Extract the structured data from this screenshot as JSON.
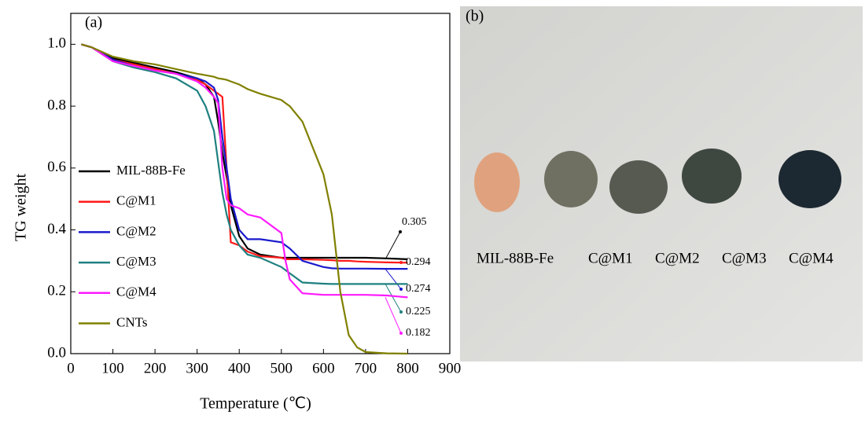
{
  "chart_data": {
    "type": "line",
    "panel_label": "(a)",
    "xlabel": "Temperature (℃)",
    "ylabel": "TG weight",
    "xlim": [
      0,
      900
    ],
    "xticks": [
      0,
      100,
      200,
      300,
      400,
      500,
      600,
      700,
      800,
      900
    ],
    "ylim": [
      0,
      1.1
    ],
    "yticks": [
      {
        "value": 0,
        "label": "0.0"
      },
      0.2,
      0.4,
      0.6,
      0.8,
      {
        "value": 1,
        "label": "1.0"
      }
    ],
    "x": [
      25,
      50,
      100,
      150,
      200,
      250,
      300,
      320,
      340,
      350,
      360,
      370,
      380,
      400,
      420,
      450,
      500,
      510,
      520,
      550,
      600,
      620,
      640,
      660,
      680,
      700,
      750,
      800
    ],
    "series": [
      {
        "name": "MIL-88B-Fe",
        "color": "#000000",
        "end_label": "0.305",
        "values": [
          1.0,
          0.99,
          0.955,
          0.94,
          0.925,
          0.91,
          0.89,
          0.87,
          0.83,
          0.75,
          0.65,
          0.57,
          0.48,
          0.38,
          0.34,
          0.32,
          0.31,
          0.31,
          0.31,
          0.31,
          0.31,
          0.31,
          0.31,
          0.31,
          0.31,
          0.31,
          0.308,
          0.305
        ]
      },
      {
        "name": "C@M1",
        "color": "#ff1a1a",
        "end_label": "0.294",
        "values": [
          1.0,
          0.99,
          0.95,
          0.935,
          0.92,
          0.905,
          0.885,
          0.87,
          0.85,
          0.84,
          0.83,
          0.6,
          0.36,
          0.35,
          0.33,
          0.315,
          0.31,
          0.305,
          0.305,
          0.305,
          0.303,
          0.302,
          0.3,
          0.3,
          0.298,
          0.297,
          0.295,
          0.294
        ]
      },
      {
        "name": "C@M2",
        "color": "#1a1acc",
        "end_label": "0.274",
        "values": [
          1.0,
          0.99,
          0.95,
          0.93,
          0.915,
          0.905,
          0.89,
          0.88,
          0.86,
          0.82,
          0.7,
          0.6,
          0.5,
          0.4,
          0.37,
          0.37,
          0.36,
          0.35,
          0.34,
          0.3,
          0.28,
          0.276,
          0.275,
          0.275,
          0.275,
          0.275,
          0.274,
          0.274
        ]
      },
      {
        "name": "C@M3",
        "color": "#1f8080",
        "end_label": "0.225",
        "values": [
          1.0,
          0.99,
          0.945,
          0.925,
          0.91,
          0.89,
          0.85,
          0.8,
          0.72,
          0.62,
          0.52,
          0.45,
          0.4,
          0.35,
          0.32,
          0.31,
          0.28,
          0.27,
          0.26,
          0.23,
          0.226,
          0.225,
          0.225,
          0.225,
          0.225,
          0.225,
          0.225,
          0.225
        ]
      },
      {
        "name": "C@M4",
        "color": "#ff1aff",
        "end_label": "0.182",
        "values": [
          1.0,
          0.99,
          0.945,
          0.93,
          0.915,
          0.905,
          0.88,
          0.86,
          0.83,
          0.81,
          0.6,
          0.5,
          0.48,
          0.47,
          0.45,
          0.44,
          0.39,
          0.3,
          0.24,
          0.195,
          0.19,
          0.19,
          0.19,
          0.19,
          0.19,
          0.19,
          0.188,
          0.182
        ]
      },
      {
        "name": "CNTs",
        "color": "#808000",
        "values": [
          1.0,
          0.99,
          0.96,
          0.945,
          0.935,
          0.92,
          0.905,
          0.9,
          0.895,
          0.89,
          0.888,
          0.885,
          0.88,
          0.87,
          0.855,
          0.84,
          0.82,
          0.81,
          0.8,
          0.75,
          0.58,
          0.45,
          0.2,
          0.06,
          0.02,
          0.005,
          0.001,
          0.0
        ]
      }
    ]
  },
  "photo": {
    "panel_label": "(b)",
    "labels": [
      "MIL-88B-Fe",
      "C@M1",
      "C@M2",
      "C@M3",
      "C@M4"
    ]
  }
}
